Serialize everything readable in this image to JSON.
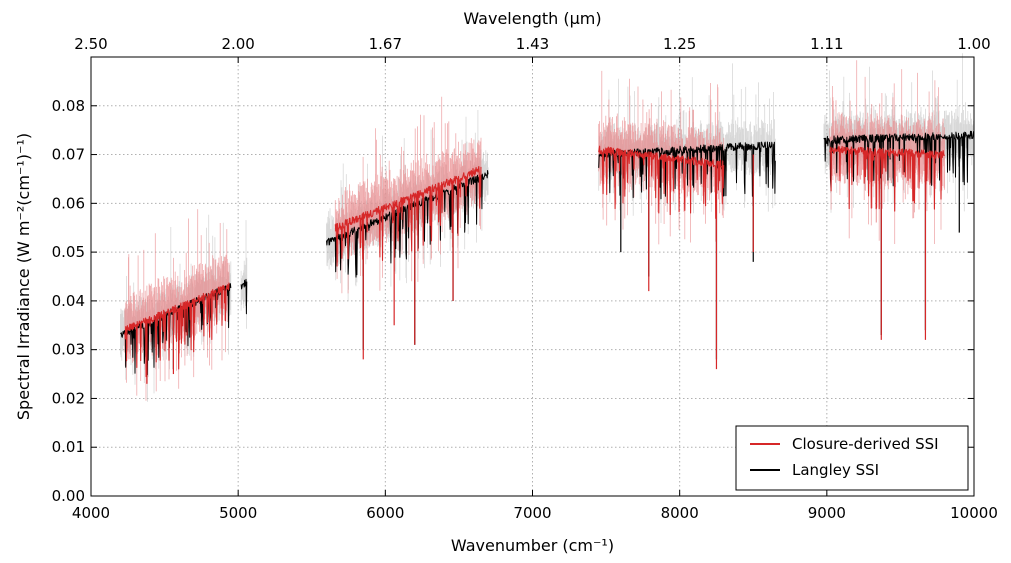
{
  "chart_data": {
    "type": "line",
    "xlabel_bottom": "Wavenumber (cm⁻¹)",
    "xlabel_top": "Wavelength (μm)",
    "ylabel": "Spectral Irradiance (W m⁻²(cm⁻¹)⁻¹)",
    "xlim": [
      4000,
      10000
    ],
    "ylim": [
      0.0,
      0.09
    ],
    "grid": true,
    "legend_position": "bottom-right",
    "x_ticks": [
      "4000",
      "5000",
      "6000",
      "7000",
      "8000",
      "9000",
      "10000"
    ],
    "y_ticks": [
      "0.00",
      "0.01",
      "0.02",
      "0.03",
      "0.04",
      "0.05",
      "0.06",
      "0.07",
      "0.08"
    ],
    "x_top_ticks": [
      "2.50",
      "2.00",
      "1.67",
      "1.43",
      "1.25",
      "1.11",
      "1.00"
    ],
    "colors": {
      "closure": "#d62728",
      "closure_band": "#e8888a",
      "langley": "#000000",
      "langley_band": "#b8b8b8"
    },
    "series": [
      {
        "name": "Closure-derived SSI",
        "segments": [
          {
            "x_range": [
              4230,
              4940
            ],
            "y_start": 0.034,
            "y_end": 0.043
          },
          {
            "x_range": [
              5660,
              6650
            ],
            "y_start": 0.055,
            "y_end": 0.067
          },
          {
            "x_range": [
              7450,
              8300
            ],
            "y_start": 0.071,
            "y_end": 0.068
          },
          {
            "x_range": [
              9020,
              9800
            ],
            "y_start": 0.071,
            "y_end": 0.07
          }
        ],
        "dips": [
          {
            "x": 4380,
            "y": 0.023
          },
          {
            "x": 4560,
            "y": 0.025
          },
          {
            "x": 5850,
            "y": 0.028
          },
          {
            "x": 6060,
            "y": 0.035
          },
          {
            "x": 6200,
            "y": 0.031
          },
          {
            "x": 6460,
            "y": 0.04
          },
          {
            "x": 7790,
            "y": 0.042
          },
          {
            "x": 8250,
            "y": 0.026
          },
          {
            "x": 8500,
            "y": 0.05
          },
          {
            "x": 9370,
            "y": 0.032
          },
          {
            "x": 9670,
            "y": 0.032
          }
        ]
      },
      {
        "name": "Langley SSI",
        "segments": [
          {
            "x_range": [
              4200,
              4950
            ],
            "y_start": 0.033,
            "y_end": 0.043
          },
          {
            "x_range": [
              5020,
              5060
            ],
            "y_start": 0.043,
            "y_end": 0.044
          },
          {
            "x_range": [
              5600,
              6700
            ],
            "y_start": 0.052,
            "y_end": 0.066
          },
          {
            "x_range": [
              7450,
              8650
            ],
            "y_start": 0.07,
            "y_end": 0.072
          },
          {
            "x_range": [
              8980,
              10000
            ],
            "y_start": 0.073,
            "y_end": 0.074
          }
        ],
        "dips": [
          {
            "x": 4380,
            "y": 0.025
          },
          {
            "x": 4560,
            "y": 0.026
          },
          {
            "x": 5850,
            "y": 0.03
          },
          {
            "x": 6200,
            "y": 0.031
          },
          {
            "x": 6460,
            "y": 0.04
          },
          {
            "x": 7600,
            "y": 0.05
          },
          {
            "x": 7790,
            "y": 0.045
          },
          {
            "x": 8250,
            "y": 0.028
          },
          {
            "x": 8500,
            "y": 0.048
          },
          {
            "x": 9370,
            "y": 0.033
          },
          {
            "x": 9670,
            "y": 0.034
          },
          {
            "x": 9900,
            "y": 0.054
          }
        ]
      }
    ],
    "legend": [
      {
        "label": "Closure-derived SSI",
        "color": "#d62728"
      },
      {
        "label": "Langley SSI",
        "color": "#000000"
      }
    ]
  }
}
